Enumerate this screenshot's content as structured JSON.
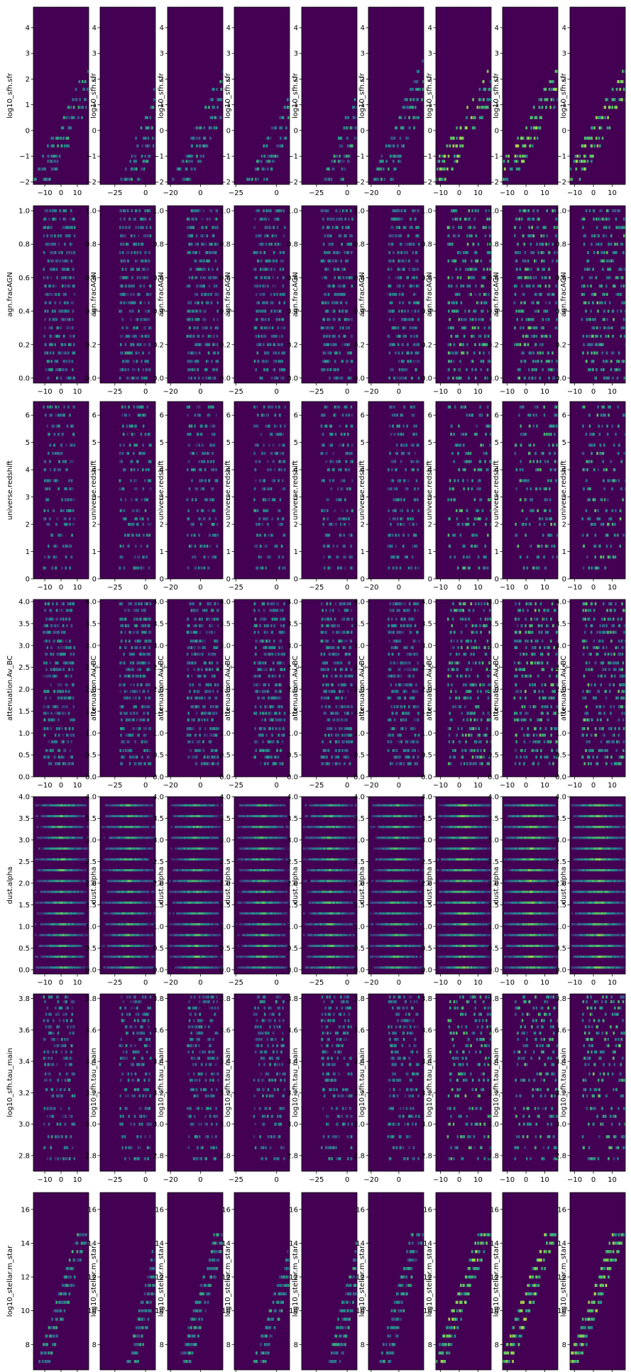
{
  "chart_data": {
    "type": "heatmap",
    "layout": {
      "rows": 7,
      "cols": 9
    },
    "colormap": "viridis",
    "background_color": "#440154",
    "columns": [
      {
        "xlim": [
          -17,
          17
        ],
        "xticks": [
          -10,
          0,
          10
        ],
        "xtick_labels": [
          "−10",
          "0",
          "10"
        ]
      },
      {
        "xlim": [
          -37,
          8
        ],
        "xticks": [
          -25,
          0
        ],
        "xtick_labels": [
          "−25",
          "0"
        ]
      },
      {
        "xlim": [
          -22,
          15
        ],
        "xticks": [
          -20,
          0
        ],
        "xtick_labels": [
          "−20",
          "0"
        ]
      },
      {
        "xlim": [
          -26,
          8
        ],
        "xticks": [
          -25,
          0
        ],
        "xtick_labels": [
          "−25",
          "0"
        ]
      },
      {
        "xlim": [
          -37,
          8
        ],
        "xticks": [
          -25,
          0
        ],
        "xtick_labels": [
          "−25",
          "0"
        ]
      },
      {
        "xlim": [
          -22,
          18
        ],
        "xticks": [
          -20,
          0
        ],
        "xtick_labels": [
          "−20",
          "0"
        ]
      },
      {
        "xlim": [
          -12.5,
          17
        ],
        "xticks": [
          -10,
          0,
          10
        ],
        "xtick_labels": [
          "−10",
          "0",
          "10"
        ]
      },
      {
        "xlim": [
          -12.5,
          17
        ],
        "xticks": [
          -10,
          0,
          10
        ],
        "xtick_labels": [
          "−10",
          "0",
          "10"
        ]
      },
      {
        "xlim": [
          -12.5,
          17
        ],
        "xticks": [
          -10,
          0,
          10
        ],
        "xtick_labels": [
          "−10",
          "0",
          "10"
        ]
      }
    ],
    "rows": [
      {
        "ylabel": "log10_sfh.sfr",
        "ylim": [
          -2.1,
          4.8
        ],
        "yticks": [
          -2,
          -1,
          0,
          1,
          2,
          3,
          4
        ],
        "ytick_labels": [
          "−2",
          "−1",
          "0",
          "1",
          "2",
          "3",
          "4"
        ],
        "pattern": "diagonal",
        "y_bands": [
          -1.9,
          -1.5,
          -1.2,
          -1.0,
          -0.6,
          -0.3,
          0.1,
          0.5,
          0.9,
          1.2,
          1.6,
          1.9,
          2.3,
          2.7,
          3.0,
          3.4,
          3.8,
          4.1,
          4.5
        ],
        "slope": 0.13,
        "intercept": -0.3,
        "spread": 5
      },
      {
        "ylabel": "agn.fracAGN",
        "ylim": [
          -0.03,
          1.03
        ],
        "yticks": [
          0.0,
          0.2,
          0.4,
          0.6,
          0.8,
          1.0
        ],
        "ytick_labels": [
          "0.0",
          "0.2",
          "0.4",
          "0.6",
          "0.8",
          "1.0"
        ],
        "pattern": "bands",
        "y_bands": [
          0.0,
          0.05,
          0.1,
          0.15,
          0.2,
          0.25,
          0.3,
          0.35,
          0.4,
          0.45,
          0.5,
          0.55,
          0.6,
          0.65,
          0.7,
          0.75,
          0.8,
          0.85,
          0.9,
          0.95,
          1.0
        ]
      },
      {
        "ylabel": "universe.redshift",
        "ylim": [
          0,
          6.5
        ],
        "yticks": [
          0,
          1,
          2,
          3,
          4,
          5,
          6
        ],
        "ytick_labels": [
          "0",
          "1",
          "2",
          "3",
          "4",
          "5",
          "6"
        ],
        "pattern": "bands",
        "y_bands": [
          0.4,
          0.8,
          1.2,
          1.6,
          2.0,
          2.2,
          2.5,
          2.9,
          3.3,
          3.6,
          4.0,
          4.3,
          4.6,
          4.9,
          5.3,
          5.6,
          6.0,
          6.3
        ]
      },
      {
        "ylabel": "attenuation.Av_BC",
        "ylim": [
          0,
          4.05
        ],
        "yticks": [
          0.0,
          0.5,
          1.0,
          1.5,
          2.0,
          2.5,
          3.0,
          3.5,
          4.0
        ],
        "ytick_labels": [
          "0.0",
          "0.5",
          "1.0",
          "1.5",
          "2.0",
          "2.5",
          "3.0",
          "3.5",
          "4.0"
        ],
        "pattern": "bands",
        "y_bands": [
          0.3,
          0.45,
          0.6,
          0.8,
          0.95,
          1.1,
          1.3,
          1.45,
          1.6,
          1.8,
          1.95,
          2.1,
          2.3,
          2.45,
          2.6,
          2.8,
          2.95,
          3.1,
          3.3,
          3.45,
          3.6,
          3.8,
          3.95
        ]
      },
      {
        "ylabel": "dust.alpha",
        "ylim": [
          -0.1,
          4.0
        ],
        "yticks": [
          0.0,
          0.5,
          1.0,
          1.5,
          2.0,
          2.5,
          3.0,
          3.5,
          4.0
        ],
        "ytick_labels": [
          "0.0",
          "0.5",
          "1.0",
          "1.5",
          "2.0",
          "2.5",
          "3.0",
          "3.5",
          "4.0"
        ],
        "pattern": "stripes",
        "y_bands": [
          0.05,
          0.3,
          0.55,
          0.8,
          1.05,
          1.3,
          1.55,
          1.8,
          2.05,
          2.3,
          2.55,
          2.8,
          3.05,
          3.3,
          3.55,
          3.8
        ]
      },
      {
        "ylabel": "log10_sfh.tau_main",
        "ylim": [
          2.7,
          3.83
        ],
        "yticks": [
          2.8,
          3.0,
          3.2,
          3.4,
          3.6,
          3.8
        ],
        "ytick_labels": [
          "2.8",
          "3.0",
          "3.2",
          "3.4",
          "3.6",
          "3.8"
        ],
        "pattern": "bands_upper",
        "y_bands": [
          2.78,
          2.85,
          2.92,
          3.0,
          3.05,
          3.1,
          3.18,
          3.22,
          3.28,
          3.32,
          3.38,
          3.42,
          3.46,
          3.5,
          3.54,
          3.58,
          3.62,
          3.66,
          3.7,
          3.74,
          3.78,
          3.81
        ]
      },
      {
        "ylabel": "log10_stellar.m_star",
        "ylim": [
          6.5,
          17.0
        ],
        "yticks": [
          8,
          10,
          12,
          14,
          16
        ],
        "ytick_labels": [
          "8",
          "10",
          "12",
          "14",
          "16"
        ],
        "pattern": "diagonal",
        "y_bands": [
          7.0,
          7.5,
          8.0,
          8.5,
          9.0,
          9.5,
          10.0,
          10.5,
          11.0,
          11.5,
          12.0,
          12.5,
          13.0,
          13.5,
          14.0,
          14.5
        ],
        "slope": 0.32,
        "intercept": 10.4,
        "spread": 3
      }
    ]
  }
}
